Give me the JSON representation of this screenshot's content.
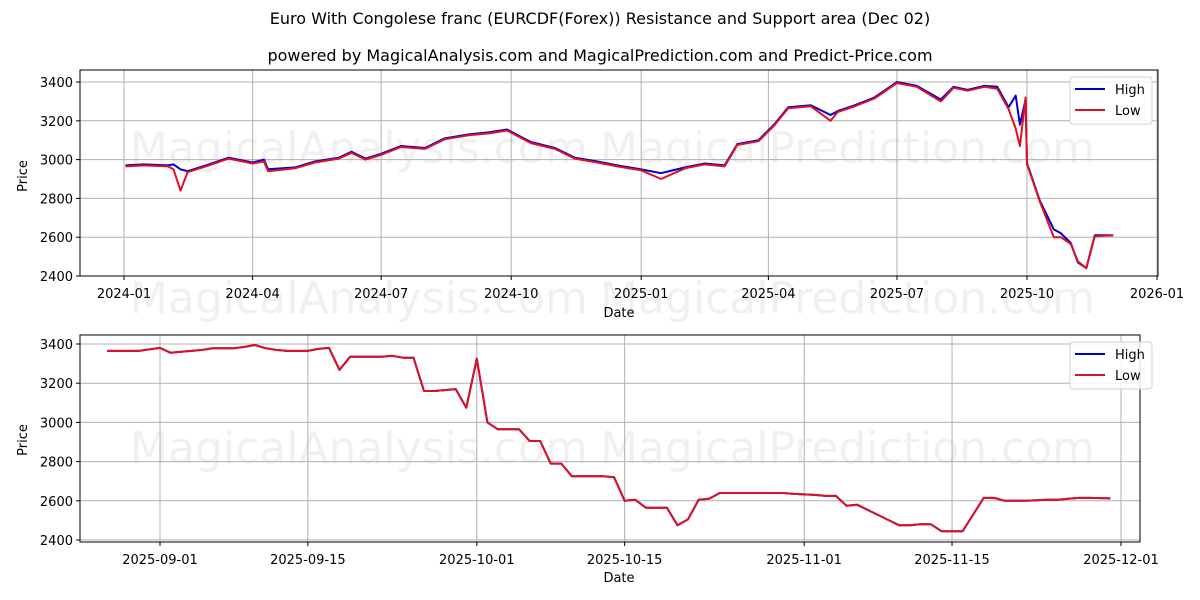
{
  "header": {
    "title": "Euro With Congolese franc (EURCDF(Forex)) Resistance and Support area (Dec 02)",
    "subtitle": "powered by MagicalAnalysis.com and MagicalPrediction.com and Predict-Price.com"
  },
  "watermarks": [
    "MagicalAnalysis.com",
    "MagicalPrediction.com"
  ],
  "colors": {
    "high": "#0000cc",
    "low": "#dd1122",
    "grid": "#b0b0b0"
  },
  "legend": {
    "high": "High",
    "low": "Low"
  },
  "chart_data": [
    {
      "type": "line",
      "title": "",
      "xlabel": "Date",
      "ylabel": "Price",
      "ylim": [
        2400,
        3460
      ],
      "yticks": [
        2400,
        2600,
        2800,
        3000,
        3200,
        3400
      ],
      "xticks": [
        "2024-01",
        "2024-04",
        "2024-07",
        "2024-10",
        "2025-01",
        "2025-04",
        "2025-07",
        "2025-10",
        "2026-01"
      ],
      "grid": true,
      "legend_position": "upper right",
      "x": [
        "2024-01-02",
        "2024-01-15",
        "2024-02-01",
        "2024-02-05",
        "2024-02-10",
        "2024-02-15",
        "2024-03-01",
        "2024-03-15",
        "2024-04-01",
        "2024-04-09",
        "2024-04-12",
        "2024-05-01",
        "2024-05-15",
        "2024-06-01",
        "2024-06-10",
        "2024-06-20",
        "2024-07-01",
        "2024-07-15",
        "2024-08-01",
        "2024-08-15",
        "2024-09-01",
        "2024-09-15",
        "2024-09-28",
        "2024-10-15",
        "2024-11-01",
        "2024-11-15",
        "2024-12-01",
        "2024-12-15",
        "2025-01-01",
        "2025-01-15",
        "2025-02-01",
        "2025-02-15",
        "2025-03-01",
        "2025-03-10",
        "2025-03-25",
        "2025-04-05",
        "2025-04-15",
        "2025-05-01",
        "2025-05-15",
        "2025-05-20",
        "2025-06-01",
        "2025-06-15",
        "2025-07-01",
        "2025-07-15",
        "2025-08-01",
        "2025-08-10",
        "2025-08-20",
        "2025-09-01",
        "2025-09-10",
        "2025-09-18",
        "2025-09-23",
        "2025-09-26",
        "2025-09-30",
        "2025-10-01",
        "2025-10-03",
        "2025-10-10",
        "2025-10-20",
        "2025-10-25",
        "2025-11-01",
        "2025-11-06",
        "2025-11-12",
        "2025-11-18",
        "2025-12-01"
      ],
      "series": [
        {
          "name": "High",
          "values": [
            2970,
            2975,
            2970,
            2975,
            2950,
            2940,
            2975,
            3010,
            2985,
            3000,
            2950,
            2960,
            2990,
            3010,
            3040,
            3005,
            3030,
            3070,
            3060,
            3110,
            3130,
            3140,
            3155,
            3090,
            3060,
            3010,
            2990,
            2970,
            2950,
            2930,
            2960,
            2980,
            2970,
            3080,
            3100,
            3180,
            3270,
            3280,
            3230,
            3250,
            3280,
            3320,
            3400,
            3380,
            3310,
            3375,
            3360,
            3380,
            3375,
            3270,
            3330,
            3180,
            3310,
            2980,
            2940,
            2790,
            2640,
            2620,
            2570,
            2470,
            2440,
            2610,
            2610
          ]
        },
        {
          "name": "Low",
          "values": [
            2965,
            2970,
            2965,
            2950,
            2840,
            2935,
            2970,
            3005,
            2980,
            2990,
            2940,
            2955,
            2985,
            3005,
            3035,
            3000,
            3025,
            3065,
            3055,
            3105,
            3125,
            3135,
            3150,
            3085,
            3055,
            3005,
            2985,
            2965,
            2945,
            2900,
            2955,
            2975,
            2965,
            3075,
            3095,
            3175,
            3265,
            3275,
            3200,
            3245,
            3275,
            3315,
            3395,
            3375,
            3300,
            3370,
            3355,
            3375,
            3365,
            3260,
            3160,
            3070,
            3320,
            2975,
            2935,
            2785,
            2600,
            2600,
            2565,
            2475,
            2440,
            2605,
            2610
          ]
        }
      ]
    },
    {
      "type": "line",
      "title": "",
      "xlabel": "Date",
      "ylabel": "Price",
      "ylim": [
        2400,
        3450
      ],
      "yticks": [
        2400,
        2600,
        2800,
        3000,
        3200,
        3400
      ],
      "xticks": [
        "2025-09-01",
        "2025-09-15",
        "2025-10-01",
        "2025-10-15",
        "2025-11-01",
        "2025-11-15",
        "2025-12-01"
      ],
      "grid": true,
      "legend_position": "upper right",
      "x": [
        "2025-08-27",
        "2025-08-29",
        "2025-08-30",
        "2025-09-01",
        "2025-09-02",
        "2025-09-03",
        "2025-09-04",
        "2025-09-05",
        "2025-09-06",
        "2025-09-08",
        "2025-09-09",
        "2025-09-10",
        "2025-09-11",
        "2025-09-12",
        "2025-09-13",
        "2025-09-15",
        "2025-09-16",
        "2025-09-17",
        "2025-09-18",
        "2025-09-19",
        "2025-09-20",
        "2025-09-22",
        "2025-09-23",
        "2025-09-24",
        "2025-09-25",
        "2025-09-26",
        "2025-09-27",
        "2025-09-29",
        "2025-09-30",
        "2025-10-01",
        "2025-10-02",
        "2025-10-03",
        "2025-10-05",
        "2025-10-06",
        "2025-10-07",
        "2025-10-08",
        "2025-10-09",
        "2025-10-10",
        "2025-10-11",
        "2025-10-13",
        "2025-10-14",
        "2025-10-15",
        "2025-10-16",
        "2025-10-17",
        "2025-10-19",
        "2025-10-20",
        "2025-10-21",
        "2025-10-22",
        "2025-10-23",
        "2025-10-24",
        "2025-10-27",
        "2025-10-30",
        "2025-10-31",
        "2025-11-02",
        "2025-11-03",
        "2025-11-04",
        "2025-11-05",
        "2025-11-06",
        "2025-11-10",
        "2025-11-11",
        "2025-11-12",
        "2025-11-13",
        "2025-11-14",
        "2025-11-16",
        "2025-11-17",
        "2025-11-18",
        "2025-11-19",
        "2025-11-20",
        "2025-11-21",
        "2025-11-22",
        "2025-11-24",
        "2025-11-25",
        "2025-11-26",
        "2025-11-27",
        "2025-11-28",
        "2025-11-30"
      ],
      "series": [
        {
          "name": "High",
          "values": [
            3365,
            3365,
            3365,
            3380,
            3355,
            3360,
            3365,
            3370,
            3378,
            3378,
            3385,
            3395,
            3378,
            3370,
            3365,
            3365,
            3375,
            3380,
            3268,
            3335,
            3335,
            3335,
            3340,
            3330,
            3330,
            3160,
            3160,
            3170,
            3075,
            3325,
            3000,
            2965,
            2965,
            2905,
            2905,
            2790,
            2790,
            2725,
            2725,
            2725,
            2720,
            2600,
            2605,
            2565,
            2565,
            2475,
            2505,
            2605,
            2610,
            2640,
            2640,
            2640,
            2635,
            2630,
            2625,
            2625,
            2575,
            2580,
            2475,
            2475,
            2480,
            2480,
            2445,
            2445,
            2530,
            2615,
            2615,
            2600,
            2600,
            2600,
            2605,
            2605,
            2610,
            2615,
            2615,
            2612
          ]
        },
        {
          "name": "Low",
          "values": [
            3365,
            3365,
            3365,
            3380,
            3355,
            3360,
            3365,
            3370,
            3378,
            3378,
            3385,
            3395,
            3378,
            3370,
            3365,
            3365,
            3375,
            3380,
            3268,
            3335,
            3335,
            3335,
            3340,
            3330,
            3330,
            3160,
            3160,
            3170,
            3075,
            3325,
            3000,
            2965,
            2965,
            2905,
            2905,
            2790,
            2790,
            2725,
            2725,
            2725,
            2720,
            2600,
            2605,
            2565,
            2565,
            2475,
            2505,
            2605,
            2610,
            2640,
            2640,
            2640,
            2635,
            2630,
            2625,
            2625,
            2575,
            2580,
            2475,
            2475,
            2480,
            2480,
            2445,
            2445,
            2530,
            2615,
            2615,
            2600,
            2600,
            2600,
            2605,
            2605,
            2610,
            2615,
            2615,
            2612
          ]
        }
      ]
    }
  ]
}
